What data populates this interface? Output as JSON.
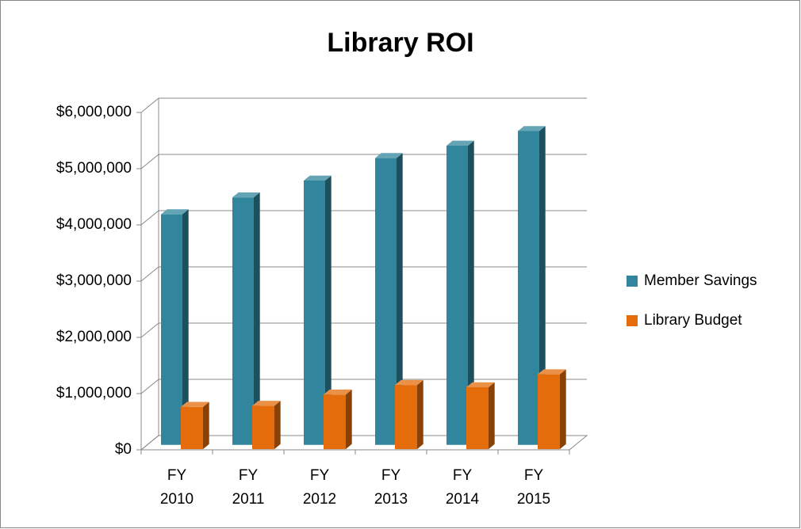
{
  "chart_data": {
    "type": "bar3d",
    "title": "Library ROI",
    "categories": [
      "FY 2010",
      "FY 2011",
      "FY 2012",
      "FY 2013",
      "FY 2014",
      "FY 2015"
    ],
    "series": [
      {
        "name": "Member Savings",
        "color": "#31859c",
        "values": [
          4100000,
          4400000,
          4700000,
          5100000,
          5320000,
          5580000
        ]
      },
      {
        "name": "Library Budget",
        "color": "#e46c0a",
        "values": [
          750000,
          770000,
          970000,
          1140000,
          1100000,
          1330000
        ]
      }
    ],
    "ylim": [
      0,
      6000000
    ],
    "yticks": [
      {
        "value": 0,
        "label": "$0"
      },
      {
        "value": 1000000,
        "label": "$1,000,000"
      },
      {
        "value": 2000000,
        "label": "$2,000,000"
      },
      {
        "value": 3000000,
        "label": "$3,000,000"
      },
      {
        "value": 4000000,
        "label": "$4,000,000"
      },
      {
        "value": 5000000,
        "label": "$5,000,000"
      },
      {
        "value": 6000000,
        "label": "$6,000,000"
      }
    ],
    "grid": true,
    "legend": "right"
  }
}
